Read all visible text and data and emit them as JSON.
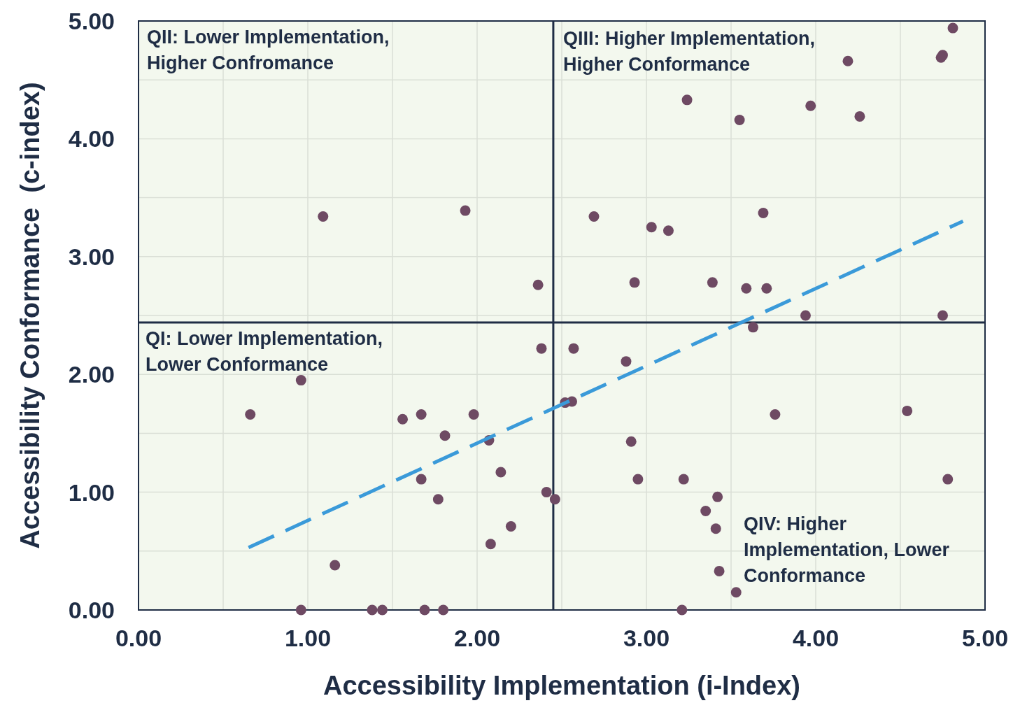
{
  "chart_data": {
    "type": "scatter",
    "xlabel": "Accessibility Implementation (i-Index)",
    "ylabel": "Accessibility Conformance  (c-index)",
    "xlim": [
      0,
      5
    ],
    "ylim": [
      0,
      5
    ],
    "xticks": [
      {
        "value": 0,
        "label": "0.00"
      },
      {
        "value": 0.5,
        "label": null
      },
      {
        "value": 1,
        "label": "1.00"
      },
      {
        "value": 1.5,
        "label": null
      },
      {
        "value": 2,
        "label": "2.00"
      },
      {
        "value": 2.5,
        "label": null
      },
      {
        "value": 3,
        "label": "3.00"
      },
      {
        "value": 3.5,
        "label": null
      },
      {
        "value": 4,
        "label": "4.00"
      },
      {
        "value": 4.5,
        "label": null
      },
      {
        "value": 5,
        "label": "5.00"
      }
    ],
    "yticks": [
      {
        "value": 0,
        "label": "0.00"
      },
      {
        "value": 0.5,
        "label": null
      },
      {
        "value": 1,
        "label": "1.00"
      },
      {
        "value": 1.5,
        "label": null
      },
      {
        "value": 2,
        "label": "2.00"
      },
      {
        "value": 2.5,
        "label": null
      },
      {
        "value": 3,
        "label": "3.00"
      },
      {
        "value": 3.5,
        "label": null
      },
      {
        "value": 4,
        "label": "4.00"
      },
      {
        "value": 4.5,
        "label": null
      },
      {
        "value": 5,
        "label": "5.00"
      }
    ],
    "grid": true,
    "ref_lines": [
      {
        "axis": "x",
        "value": 2.45,
        "color": "#1f2d45"
      },
      {
        "axis": "y",
        "value": 2.44,
        "color": "#1f2d45"
      }
    ],
    "annotations": [
      "QII: Lower Implementation, Higher Confromance",
      "QIII: Higher Implementation, Higher Conformance",
      "QI: Lower Implementation, Lower Conformance",
      "QIV: Higher Implementation, Lower Conformance"
    ],
    "series": [
      {
        "marker": "circle",
        "color": "#6e4a63",
        "x": [
          4.81,
          4.19,
          4.75,
          4.74,
          3.24,
          3.97,
          3.55,
          4.26,
          1.09,
          1.93,
          2.69,
          3.03,
          3.13,
          3.69,
          2.36,
          2.93,
          3.39,
          3.59,
          3.71,
          3.94,
          4.75,
          3.63,
          2.38,
          2.57,
          2.88,
          0.96,
          0.66,
          1.56,
          1.67,
          1.98,
          1.81,
          2.07,
          2.52,
          2.56,
          3.76,
          4.54,
          2.91,
          1.67,
          2.14,
          1.77,
          2.41,
          2.46,
          2.95,
          3.22,
          4.78,
          3.42,
          3.35,
          3.41,
          2.2,
          2.08,
          1.16,
          3.43,
          3.53,
          0.96,
          1.38,
          1.44,
          1.69,
          1.8,
          3.21
        ],
        "values": [
          4.94,
          4.66,
          4.71,
          4.69,
          4.33,
          4.28,
          4.16,
          4.19,
          3.34,
          3.39,
          3.34,
          3.25,
          3.22,
          3.37,
          2.76,
          2.78,
          2.78,
          2.73,
          2.73,
          2.5,
          2.5,
          2.4,
          2.22,
          2.22,
          2.11,
          1.95,
          1.66,
          1.62,
          1.66,
          1.66,
          1.48,
          1.44,
          1.76,
          1.77,
          1.66,
          1.69,
          1.43,
          1.11,
          1.17,
          0.94,
          1.0,
          0.94,
          1.11,
          1.11,
          1.11,
          0.96,
          0.84,
          0.69,
          0.71,
          0.56,
          0.38,
          0.33,
          0.15,
          0,
          0,
          0,
          0,
          0,
          0
        ]
      },
      {
        "type": "line",
        "color": "#3a9ad9",
        "line_style": "dashed",
        "x": [
          0.65,
          4.87
        ],
        "values": [
          0.53,
          3.3
        ]
      }
    ]
  }
}
